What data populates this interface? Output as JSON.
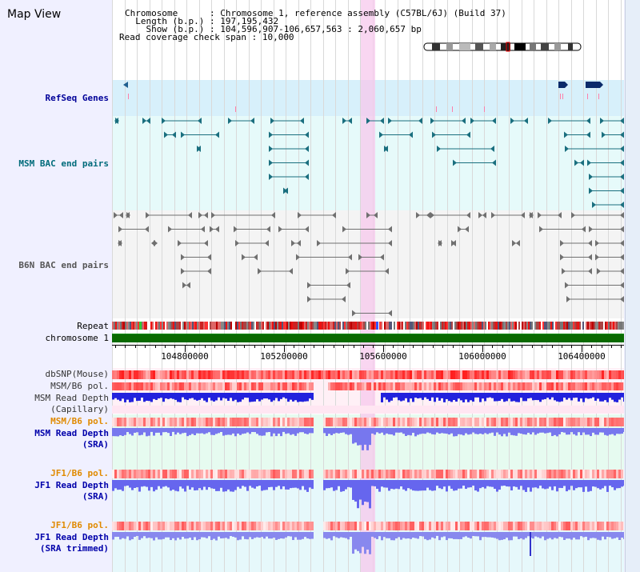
{
  "title": "Map View",
  "header": {
    "chromosome_label": "Chromosome",
    "chromosome_value": ": Chromosome 1, reference assembly (C57BL/6J) (Build 37)",
    "length_label": "Length (b.p.)",
    "length_value": ": 197,195,432",
    "show_label": "Show (b.p.)",
    "show_value": ": 104,596,907-106,657,563 : 2,060,657 bp",
    "coverage_label": "Read coverage check span",
    "coverage_value": ": 10,000"
  },
  "tracks": {
    "refseq": "RefSeq Genes",
    "msm_bac": "MSM BAC end pairs",
    "b6n_bac": "B6N BAC end pairs",
    "repeat": "Repeat",
    "chromosome": "chromosome 1",
    "dbsnp": "dbSNP(Mouse)",
    "msm_b6_pol1": "MSM/B6 pol.",
    "msm_depth_cap_1": "MSM Read Depth",
    "msm_depth_cap_2": "(Capillary)",
    "msm_b6_pol2": "MSM/B6 pol.",
    "msm_depth_sra_1": "MSM Read Depth",
    "msm_depth_sra_2": "(SRA)",
    "jf1_b6_pol1": "JF1/B6 pol.",
    "jf1_depth_sra_1": "JF1 Read Depth",
    "jf1_depth_sra_2": "(SRA)",
    "jf1_b6_pol2": "JF1/B6 pol.",
    "jf1_depth_trim_1": "JF1 Read Depth",
    "jf1_depth_trim_2": "(SRA trimmed)"
  },
  "axis": {
    "ticks": [
      "104800000",
      "105200000",
      "105600000",
      "106000000",
      "106400000"
    ]
  },
  "colors": {
    "refseq_label": "#000099",
    "msm_bac_label": "#006b7a",
    "b6n_bac_label": "#555555",
    "pol_label": "#e08a00",
    "depth_label": "#0000aa",
    "selection": "#f7c8ec"
  }
}
